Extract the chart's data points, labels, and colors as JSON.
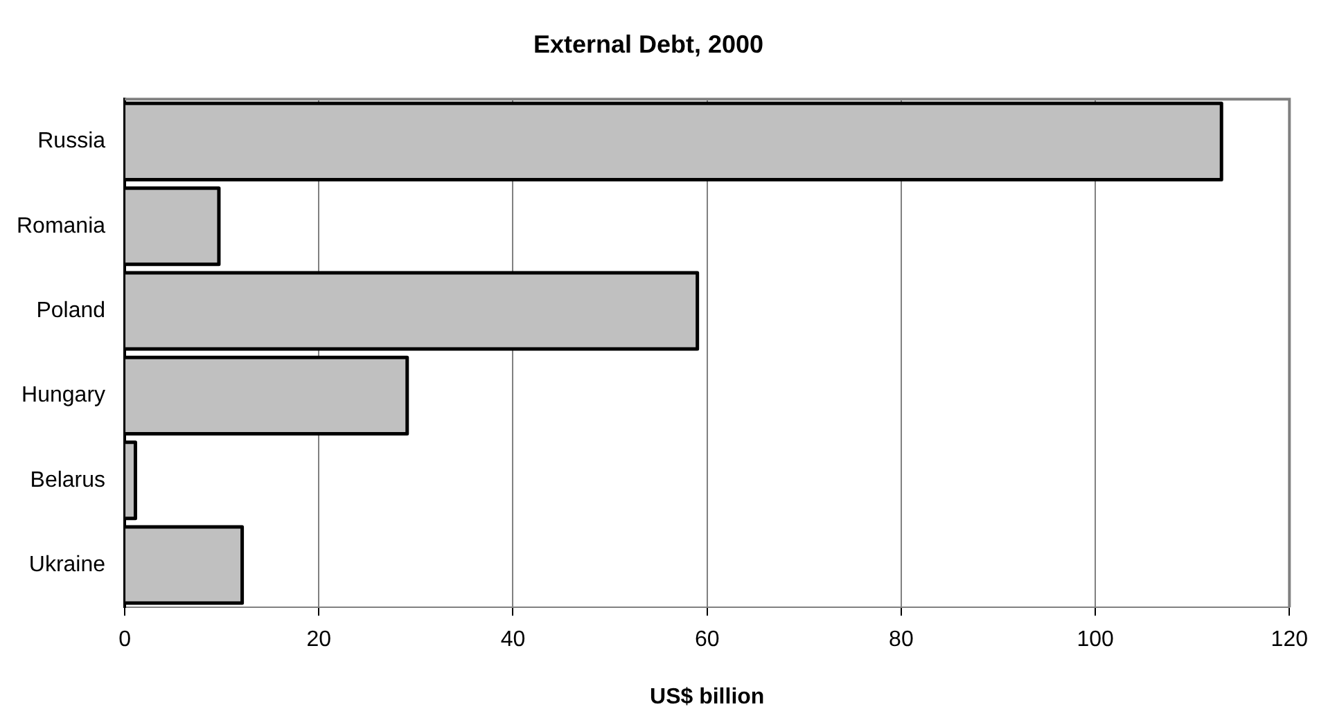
{
  "chart_data": {
    "type": "bar",
    "orientation": "horizontal",
    "title": "External Debt, 2000",
    "xlabel": "US$ billion",
    "categories": [
      "Russia",
      "Romania",
      "Poland",
      "Hungary",
      "Belarus",
      "Ukraine"
    ],
    "values": [
      113,
      9.7,
      59,
      29.1,
      1.1,
      12.1
    ],
    "color": "#c0c0c0",
    "xlim": [
      0,
      120
    ],
    "xticks": [
      0,
      20,
      40,
      60,
      80,
      100,
      120
    ],
    "grid": "x",
    "legend": false
  }
}
